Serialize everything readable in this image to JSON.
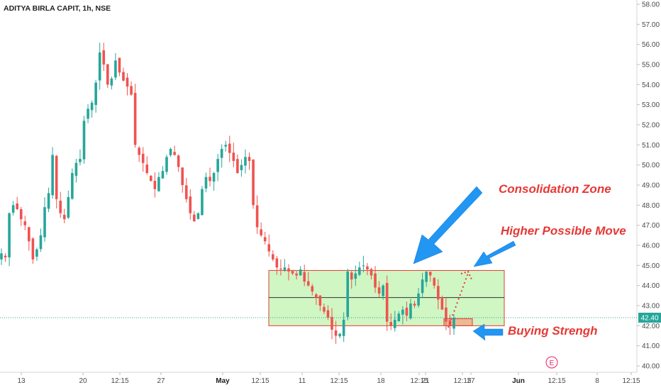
{
  "header": {
    "title": "ADITYA BIRLA CAPIT, 1h, NSE"
  },
  "colors": {
    "up": "#26a69a",
    "down": "#ef5350",
    "zone_fill": "#c8f5b8",
    "zone_border": "#e53935",
    "arrow": "#2196f3",
    "annotation": "#e53935",
    "price_line": "#26a69a"
  },
  "chart_data": {
    "type": "candlestick",
    "title": "ADITYA BIRLA CAPIT, 1h, NSE",
    "ylim": [
      40.0,
      58.0
    ],
    "y_ticks": [
      "58.00",
      "57.00",
      "56.00",
      "55.00",
      "54.00",
      "53.00",
      "52.00",
      "51.00",
      "50.00",
      "49.00",
      "48.00",
      "47.00",
      "46.00",
      "45.00",
      "44.00",
      "43.00",
      "42.00",
      "41.00",
      "40.00"
    ],
    "x_ticks": [
      {
        "label": "13",
        "bold": false
      },
      {
        "label": "20",
        "bold": false
      },
      {
        "label": "12:15",
        "bold": false
      },
      {
        "label": "27",
        "bold": false
      },
      {
        "label": "May",
        "bold": true
      },
      {
        "label": "12:15",
        "bold": false
      },
      {
        "label": "11",
        "bold": false
      },
      {
        "label": "12:15",
        "bold": false
      },
      {
        "label": "18",
        "bold": false
      },
      {
        "label": "12:15",
        "bold": false
      },
      {
        "label": "21",
        "bold": false
      },
      {
        "label": "12:15",
        "bold": false
      },
      {
        "label": "27",
        "bold": false
      },
      {
        "label": "Jun",
        "bold": true
      },
      {
        "label": "12:15",
        "bold": false
      },
      {
        "label": "8",
        "bold": false
      },
      {
        "label": "12:15",
        "bold": false
      }
    ],
    "last_price": "42.40",
    "earnings_marker": "E",
    "close_path": [
      [
        0,
        45.6
      ],
      [
        1,
        45.4
      ],
      [
        2,
        47.6
      ],
      [
        3,
        48.0
      ],
      [
        4,
        47.8
      ],
      [
        5,
        47.3
      ],
      [
        6,
        47.0
      ],
      [
        7,
        46.2
      ],
      [
        8,
        45.3
      ],
      [
        9,
        45.8
      ],
      [
        10,
        46.5
      ],
      [
        11,
        47.9
      ],
      [
        12,
        48.6
      ],
      [
        13,
        50.5
      ],
      [
        14,
        48.3
      ],
      [
        15,
        47.6
      ],
      [
        16,
        47.3
      ],
      [
        17,
        48.4
      ],
      [
        18,
        49.6
      ],
      [
        19,
        50.1
      ],
      [
        20,
        50.3
      ],
      [
        21,
        52.2
      ],
      [
        22,
        52.8
      ],
      [
        23,
        53.1
      ],
      [
        24,
        54.1
      ],
      [
        25,
        55.6
      ],
      [
        26,
        55.0
      ],
      [
        27,
        54.0
      ],
      [
        28,
        54.3
      ],
      [
        29,
        55.2
      ],
      [
        30,
        54.6
      ],
      [
        31,
        54.2
      ],
      [
        32,
        53.9
      ],
      [
        33,
        53.5
      ],
      [
        34,
        51.0
      ],
      [
        35,
        50.5
      ],
      [
        36,
        50.1
      ],
      [
        37,
        49.6
      ],
      [
        38,
        49.2
      ],
      [
        39,
        48.8
      ],
      [
        40,
        49.4
      ],
      [
        41,
        49.7
      ],
      [
        42,
        50.4
      ],
      [
        43,
        50.8
      ],
      [
        44,
        50.5
      ],
      [
        45,
        49.9
      ],
      [
        46,
        49.0
      ],
      [
        47,
        48.3
      ],
      [
        48,
        47.6
      ],
      [
        49,
        47.2
      ],
      [
        50,
        47.6
      ],
      [
        51,
        48.8
      ],
      [
        52,
        49.4
      ],
      [
        53,
        49.2
      ],
      [
        54,
        49.6
      ],
      [
        55,
        50.3
      ],
      [
        56,
        50.8
      ],
      [
        57,
        51.0
      ],
      [
        58,
        50.6
      ],
      [
        59,
        50.2
      ],
      [
        60,
        49.6
      ],
      [
        61,
        50.0
      ],
      [
        62,
        50.4
      ],
      [
        63,
        50.2
      ],
      [
        64,
        48.0
      ],
      [
        65,
        46.9
      ],
      [
        66,
        46.5
      ],
      [
        67,
        46.2
      ],
      [
        68,
        45.7
      ],
      [
        69,
        45.3
      ],
      [
        70,
        44.9
      ],
      [
        71,
        44.8
      ],
      [
        72,
        44.9
      ],
      [
        73,
        44.7
      ],
      [
        74,
        44.6
      ],
      [
        75,
        44.5
      ],
      [
        76,
        44.8
      ],
      [
        77,
        44.2
      ],
      [
        78,
        44.0
      ],
      [
        79,
        43.7
      ],
      [
        80,
        43.4
      ],
      [
        81,
        43.0
      ],
      [
        82,
        42.7
      ],
      [
        83,
        42.4
      ],
      [
        84,
        41.8
      ],
      [
        85,
        41.5
      ],
      [
        86,
        41.6
      ],
      [
        87,
        42.3
      ],
      [
        88,
        44.7
      ],
      [
        89,
        44.3
      ],
      [
        90,
        44.6
      ],
      [
        91,
        44.9
      ],
      [
        92,
        45.0
      ],
      [
        93,
        44.8
      ],
      [
        94,
        44.5
      ],
      [
        95,
        43.9
      ],
      [
        96,
        43.6
      ],
      [
        97,
        44.0
      ],
      [
        98,
        42.2
      ],
      [
        99,
        42.0
      ],
      [
        100,
        42.3
      ],
      [
        101,
        42.6
      ],
      [
        102,
        42.8
      ],
      [
        103,
        42.5
      ],
      [
        104,
        43.1
      ],
      [
        105,
        43.0
      ],
      [
        106,
        43.6
      ],
      [
        107,
        44.3
      ],
      [
        108,
        44.7
      ],
      [
        109,
        44.5
      ],
      [
        110,
        44.0
      ],
      [
        111,
        43.3
      ],
      [
        112,
        42.8
      ],
      [
        113,
        42.2
      ],
      [
        114,
        42.0
      ],
      [
        115,
        42.4
      ]
    ],
    "consolidation_zone": {
      "y_top": 44.75,
      "y_bottom": 42.0,
      "midline": 43.4
    },
    "buying_zone": {
      "y_top": 42.35,
      "y_bottom": 42.0
    },
    "annotations": [
      {
        "text": "Consolidation Zone"
      },
      {
        "text": "Higher Possible Move"
      },
      {
        "text": "Buying Strengh"
      }
    ]
  }
}
